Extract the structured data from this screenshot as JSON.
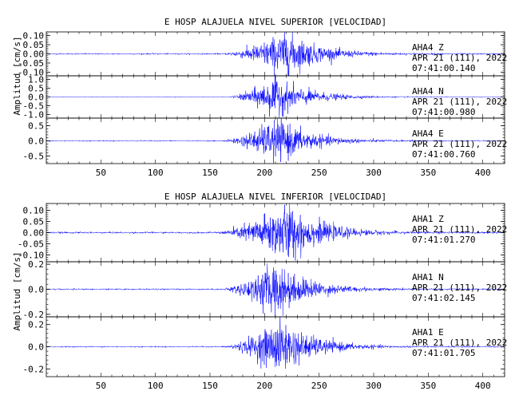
{
  "chart_data": [
    {
      "type": "line",
      "title": "E HOSP ALAJUELA NIVEL SUPERIOR [VELOCIDAD]",
      "ylabel": "Amplitud [cm/s]",
      "xlabel": "",
      "xlim": [
        0,
        420
      ],
      "xticks": [
        50,
        100,
        150,
        200,
        250,
        300,
        350,
        400
      ],
      "grid": false,
      "trace_color": "#0000ff",
      "traces": [
        {
          "station": "AHA4",
          "component": "Z",
          "date": "APR 21 (111), 2022",
          "time": "07:41:00.140",
          "ylim": [
            -0.12,
            0.12
          ],
          "yticks": [
            0.1,
            0.05,
            0.0,
            -0.05,
            -0.1
          ],
          "ytick_labels": [
            "0.10",
            "0.05",
            "0.00",
            "-0.05",
            "-0.10"
          ],
          "peak": 0.12,
          "onset": 160,
          "peak_time": 220,
          "noise": 0.002
        },
        {
          "station": "AHA4",
          "component": "N",
          "date": "APR 21 (111), 2022",
          "time": "07:41:00.980",
          "ylim": [
            -1.2,
            1.2
          ],
          "yticks": [
            1.0,
            0.5,
            0.0,
            -0.5,
            -1.0
          ],
          "ytick_labels": [
            "1.0",
            "0.5",
            "0.0",
            "-0.5",
            "-1.0"
          ],
          "peak": 1.1,
          "onset": 165,
          "peak_time": 210,
          "noise": 0.01
        },
        {
          "station": "AHA4",
          "component": "E",
          "date": "APR 21 (111), 2022",
          "time": "07:41:00.760",
          "ylim": [
            -0.75,
            0.75
          ],
          "yticks": [
            0.5,
            0.0,
            -0.5
          ],
          "ytick_labels": [
            "0.5",
            "0.0",
            "-0.5"
          ],
          "peak": 0.72,
          "onset": 160,
          "peak_time": 212,
          "noise": 0.01
        }
      ]
    },
    {
      "type": "line",
      "title": "E HOSP ALAJUELA NIVEL INFERIOR [VELOCIDAD]",
      "ylabel": "Amplitud [cm/s]",
      "xlabel": "",
      "xlim": [
        0,
        420
      ],
      "xticks": [
        50,
        100,
        150,
        200,
        250,
        300,
        350,
        400
      ],
      "grid": false,
      "trace_color": "#0000ff",
      "traces": [
        {
          "station": "AHA1",
          "component": "Z",
          "date": "APR 21 (111), 2022",
          "time": "07:41:01.270",
          "ylim": [
            -0.13,
            0.13
          ],
          "yticks": [
            0.1,
            0.05,
            0.0,
            -0.05,
            -0.1
          ],
          "ytick_labels": [
            "0.10",
            "0.05",
            "0.00",
            "-0.05",
            "-0.10"
          ],
          "peak": 0.13,
          "onset": 155,
          "peak_time": 220,
          "noise": 0.002
        },
        {
          "station": "AHA1",
          "component": "N",
          "date": "APR 21 (111), 2022",
          "time": "07:41:02.145",
          "ylim": [
            -0.22,
            0.22
          ],
          "yticks": [
            0.2,
            0.0,
            -0.2
          ],
          "ytick_labels": [
            "0.2",
            "0.0",
            "-0.2"
          ],
          "peak": 0.21,
          "onset": 160,
          "peak_time": 210,
          "noise": 0.003
        },
        {
          "station": "AHA1",
          "component": "E",
          "date": "APR 21 (111), 2022",
          "time": "07:41:01.705",
          "ylim": [
            -0.27,
            0.27
          ],
          "yticks": [
            0.2,
            0.0,
            -0.2
          ],
          "ytick_labels": [
            "0.2",
            "0.0",
            "-0.2"
          ],
          "peak": 0.24,
          "onset": 160,
          "peak_time": 215,
          "noise": 0.003
        }
      ]
    }
  ]
}
